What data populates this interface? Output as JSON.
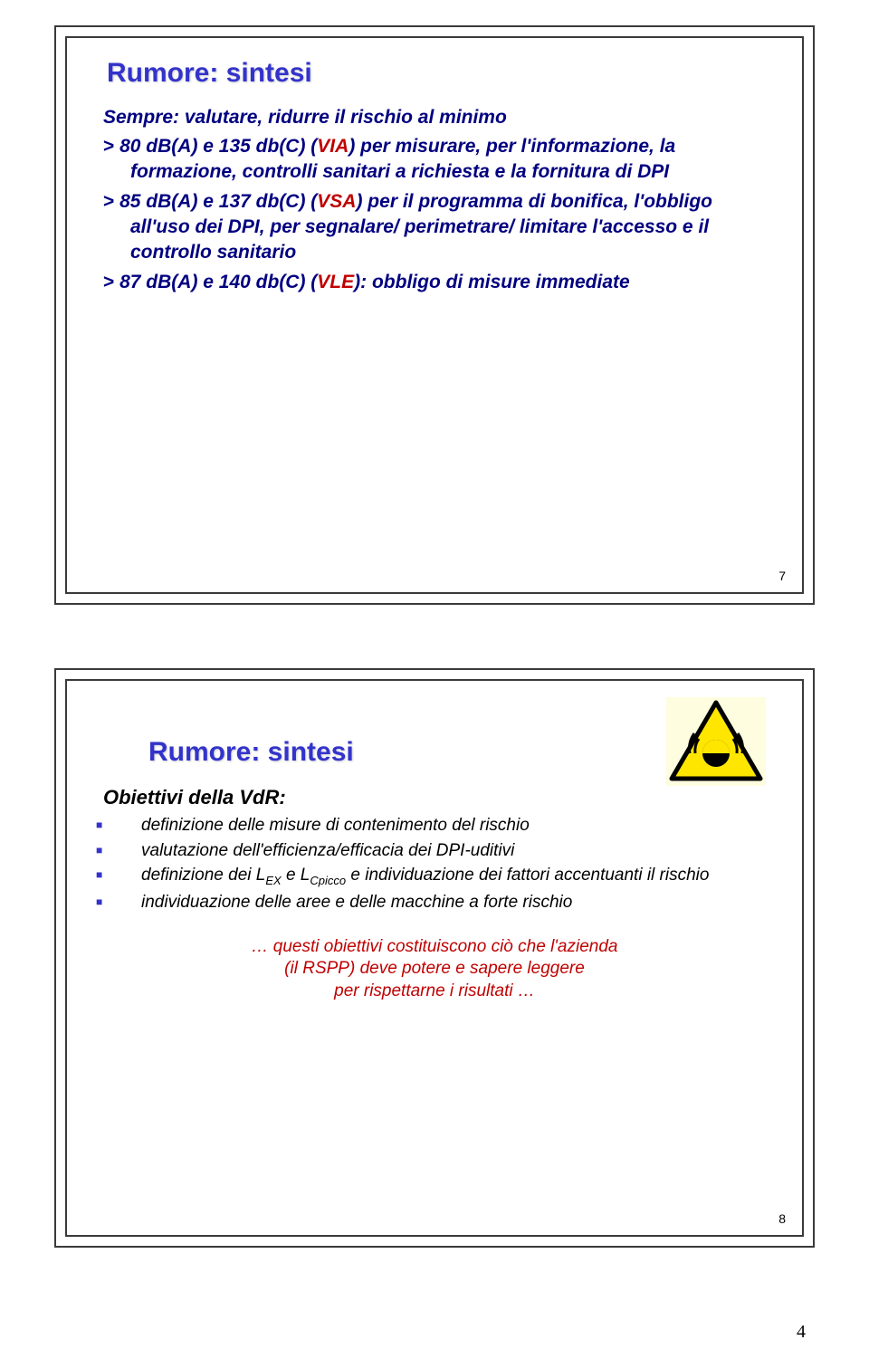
{
  "page_number": "4",
  "slide1": {
    "title": "Rumore: sintesi",
    "subtitle": "Sempre: valutare, ridurre il rischio al minimo",
    "items": [
      {
        "gt": ">",
        "lead": " 80 dB(A) e 135 db(C) (",
        "acr": "VIA",
        "tail": ")  per misurare, per l'informazione, la formazione, controlli sanitari a richiesta e la fornitura di DPI"
      },
      {
        "gt": ">",
        "lead": " 85 dB(A) e 137 db(C) (",
        "acr": "VSA",
        "tail": ") per il programma di bonifica, l'obbligo all'uso dei DPI, per segnalare/ perimetrare/ limitare l'accesso e il controllo sanitario"
      },
      {
        "gt": ">",
        "lead": " 87 dB(A) e 140 db(C) (",
        "acr": "VLE",
        "tail": "): obbligo di misure immediate"
      }
    ],
    "slide_num": "7"
  },
  "slide2": {
    "title": "Rumore: sintesi",
    "subtitle": "Obiettivi della VdR:",
    "bullets": [
      "definizione delle misure di contenimento del rischio",
      "valutazione dell'efficienza/efficacia dei DPI-uditivi",
      "definizione dei L<sub>EX</sub> e L<sub>Cpicco</sub> e individuazione dei fattori accentuanti il rischio",
      "individuazione delle aree e delle macchine a forte rischio"
    ],
    "footer": [
      "… questi obiettivi costituiscono ciò che l'azienda",
      "(il RSPP) deve potere e sapere leggere",
      "per rispettarne i risultati …"
    ],
    "slide_num": "8",
    "warning": {
      "triangle_fill": "#ffe600",
      "triangle_stroke": "#000000",
      "bg": "#fffde0"
    }
  },
  "colors": {
    "title": "#3333cc",
    "navy": "#000080",
    "red": "#c00000",
    "border": "#3a3a3a",
    "bullet_square": "#3333cc"
  }
}
